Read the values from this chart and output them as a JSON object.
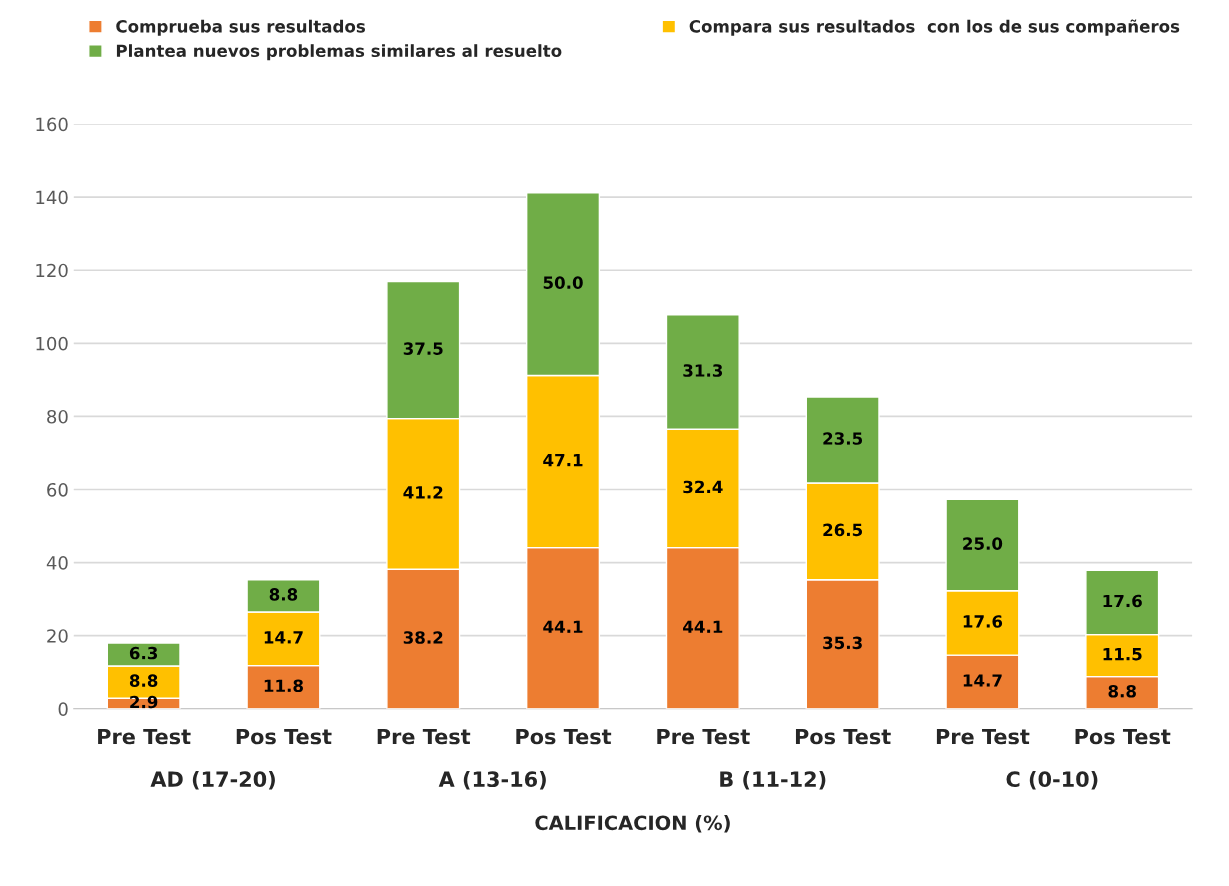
{
  "chart_data": {
    "type": "bar",
    "stacked": true,
    "xlabel": "CALIFICACION (%)",
    "categories": [
      "Pre Test",
      "Pos Test",
      "Pre Test",
      "Pos Test",
      "Pre Test",
      "Pos Test",
      "Pre Test",
      "Pos Test"
    ],
    "annotations": [
      "AD (17-20)",
      "A (13-16)",
      "B (11-12)",
      "C (0-10)"
    ],
    "series": [
      {
        "name": "Comprueba sus resultados",
        "color": "#ed7d31",
        "values": [
          2.9,
          11.8,
          38.2,
          44.1,
          44.1,
          35.3,
          14.7,
          8.8
        ],
        "value_labels": [
          "2.9",
          "11.8",
          "38.2",
          "44.1",
          "44.1",
          "35.3",
          "14.7",
          "8.8"
        ]
      },
      {
        "name": "Compara sus resultados  con los de sus compañeros",
        "color": "#ffc000",
        "values": [
          8.8,
          14.7,
          41.2,
          47.1,
          32.4,
          26.5,
          17.6,
          11.5
        ],
        "value_labels": [
          "8.8",
          "14.7",
          "41.2",
          "47.1",
          "32.4",
          "26.5",
          "17.6",
          "11.5"
        ]
      },
      {
        "name": "Plantea nuevos problemas similares al resuelto",
        "color": "#70ad47",
        "values": [
          6.3,
          8.8,
          37.5,
          50,
          31.3,
          23.5,
          25,
          17.6
        ],
        "value_labels": [
          "6.3",
          "8.8",
          "37.5",
          "50.0",
          "31.3",
          "23.5",
          "25.0",
          "17.6"
        ]
      }
    ],
    "ylim": [
      0,
      160
    ],
    "yticks": [
      0,
      20,
      40,
      60,
      80,
      100,
      120,
      140,
      160
    ],
    "grid": "y",
    "legend": "top"
  }
}
